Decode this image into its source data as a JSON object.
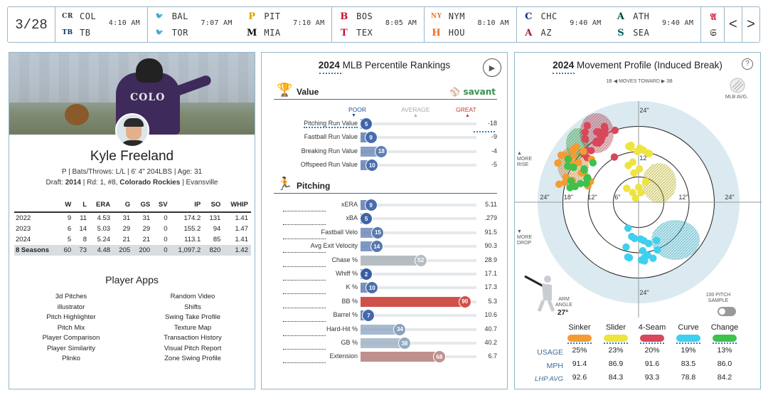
{
  "scoreboard": {
    "date": "3/28",
    "games": [
      {
        "away": "COL",
        "home": "TB",
        "time": "4:10 AM",
        "away_icon": "rockies-logo-icon",
        "home_icon": "rays-logo-icon"
      },
      {
        "away": "BAL",
        "home": "TOR",
        "time": "7:07 AM",
        "away_icon": "orioles-logo-icon",
        "home_icon": "blue-jays-logo-icon"
      },
      {
        "away": "PIT",
        "home": "MIA",
        "time": "7:10 AM",
        "away_icon": "pirates-logo-icon",
        "home_icon": "marlins-logo-icon"
      },
      {
        "away": "BOS",
        "home": "TEX",
        "time": "8:05 AM",
        "away_icon": "red-sox-logo-icon",
        "home_icon": "rangers-logo-icon"
      },
      {
        "away": "NYM",
        "home": "HOU",
        "time": "8:10 AM",
        "away_icon": "mets-logo-icon",
        "home_icon": "astros-logo-icon"
      },
      {
        "away": "CHC",
        "home": "AZ",
        "time": "9:40 AM",
        "away_icon": "cubs-logo-icon",
        "home_icon": "diamondbacks-logo-icon"
      },
      {
        "away": "ATH",
        "home": "SEA",
        "time": "9:40 AM",
        "away_icon": "athletics-logo-icon",
        "home_icon": "mariners-logo-icon"
      }
    ],
    "prev_label": "<",
    "next_label": ">"
  },
  "player": {
    "name": "Kyle Freeland",
    "line1": "P | Bats/Throws: L/L | 6' 4\" 204LBS | Age: 31",
    "draft_prefix": "Draft: ",
    "draft_year": "2014",
    "draft_mid": " | Rd: 1, #8, ",
    "draft_team": "Colorado Rockies",
    "draft_suffix": " | Evansville",
    "jersey_text": "COLO",
    "stats": {
      "columns": [
        "",
        "W",
        "L",
        "ERA",
        "G",
        "GS",
        "SV",
        "IP",
        "SO",
        "WHIP"
      ],
      "rows": [
        [
          "2022",
          "9",
          "11",
          "4.53",
          "31",
          "31",
          "0",
          "174.2",
          "131",
          "1.41"
        ],
        [
          "2023",
          "6",
          "14",
          "5.03",
          "29",
          "29",
          "0",
          "155.2",
          "94",
          "1.47"
        ],
        [
          "2024",
          "5",
          "8",
          "5.24",
          "21",
          "21",
          "0",
          "113.1",
          "85",
          "1.41"
        ]
      ],
      "total": [
        "8 Seasons",
        "60",
        "73",
        "4.48",
        "205",
        "200",
        "0",
        "1,097.2",
        "820",
        "1.42"
      ]
    },
    "apps_title": "Player Apps",
    "apps_left": [
      "3d Pitches",
      "illustrator",
      "Pitch Highlighter",
      "Pitch Mix",
      "Player Comparison",
      "Player Similarity",
      "Plinko"
    ],
    "apps_right": [
      "Random Video",
      "Shifts",
      "Swing Take Profile",
      "Texture Map",
      "Transaction History",
      "Visual Pitch Report",
      "Zone Swing Profile"
    ]
  },
  "percentiles": {
    "year": "2024",
    "title": "MLB Percentile Rankings",
    "value_section": "Value",
    "savant_label": "savant",
    "scale": {
      "poor": "POOR",
      "average": "AVERAGE",
      "great": "GREAT"
    },
    "value_rows": [
      {
        "label": "Pitching Run Value",
        "pct": 5,
        "value": "-18",
        "underline": true
      },
      {
        "label": "Fastball Run Value",
        "pct": 9,
        "value": "-9"
      },
      {
        "label": "Breaking Run Value",
        "pct": 18,
        "value": "-4"
      },
      {
        "label": "Offspeed Run Value",
        "pct": 10,
        "value": "-5"
      }
    ],
    "pitching_section": "Pitching",
    "pitching_rows": [
      {
        "label": "xERA",
        "pct": 9,
        "value": "5.11"
      },
      {
        "label": "xBA",
        "pct": 5,
        "value": ".279"
      },
      {
        "label": "Fastball Velo",
        "pct": 15,
        "value": "91.5"
      },
      {
        "label": "Avg Exit Velocity",
        "pct": 14,
        "value": "90.3"
      },
      {
        "label": "Chase %",
        "pct": 52,
        "value": "28.9"
      },
      {
        "label": "Whiff %",
        "pct": 2,
        "value": "17.1"
      },
      {
        "label": "K %",
        "pct": 10,
        "value": "17.3"
      },
      {
        "label": "BB %",
        "pct": 90,
        "value": "5.3"
      },
      {
        "label": "Barrel %",
        "pct": 7,
        "value": "10.6"
      },
      {
        "label": "Hard-Hit %",
        "pct": 34,
        "value": "40.7"
      },
      {
        "label": "GB %",
        "pct": 38,
        "value": "40.2"
      },
      {
        "label": "Extension",
        "pct": 68,
        "value": "6.7"
      }
    ]
  },
  "movement": {
    "year": "2024",
    "title": "Movement Profile (Induced Break)",
    "help": "?",
    "direction": "1B ◀ MOVES TOWARD ▶ 3B",
    "mlb_avg": "MLB AVG.",
    "more_rise": "MORE RISE",
    "more_drop": "MORE DROP",
    "arm_angle_label": "ARM ANGLE",
    "arm_angle": "27°",
    "sample_label": "100 PITCH SAMPLE",
    "rings": {
      "outer": "24\"",
      "mid": "18\"",
      "inner": "12\"",
      "center": "6\""
    },
    "pitch_types": [
      {
        "name": "Sinker",
        "color": "#f39c33",
        "usage": "25%",
        "mph": "91.4",
        "lhp": "92.6"
      },
      {
        "name": "Slider",
        "color": "#eee43f",
        "usage": "23%",
        "mph": "86.9",
        "lhp": "84.3"
      },
      {
        "name": "4-Seam",
        "color": "#d8475a",
        "usage": "20%",
        "mph": "91.6",
        "lhp": "93.3"
      },
      {
        "name": "Curve",
        "color": "#3ed0ee",
        "usage": "19%",
        "mph": "83.5",
        "lhp": "78.8"
      },
      {
        "name": "Change",
        "color": "#3fc14d",
        "usage": "13%",
        "mph": "86.0",
        "lhp": "84.2"
      }
    ],
    "row_labels": {
      "usage": "USAGE",
      "mph": "MPH",
      "lhp": "LHP AVG"
    }
  }
}
